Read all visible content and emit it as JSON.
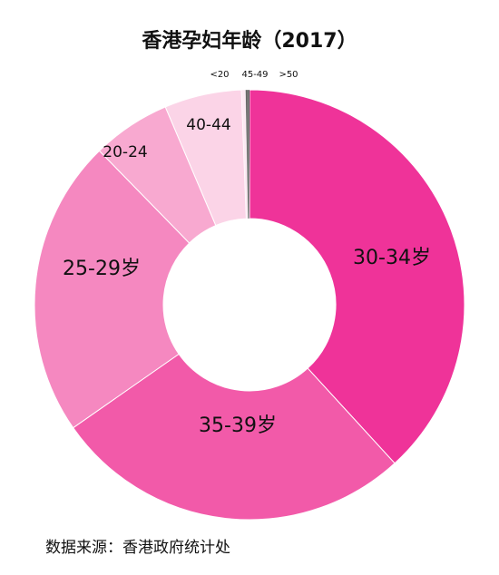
{
  "chart_data": {
    "type": "pie",
    "title": "香港孕妇年龄（2017）",
    "categories": [
      "30-34岁",
      "35-39岁",
      "25-29岁",
      "20-24",
      "40-44",
      "<20",
      "45-49",
      ">50"
    ],
    "values": [
      38.2,
      27.1,
      22.4,
      5.9,
      5.8,
      0.3,
      0.2,
      0.1
    ],
    "colors": [
      "#ef3399",
      "#f25aa9",
      "#f588c0",
      "#f8a9d0",
      "#fbd4e7",
      "#fde9f3",
      "#6a6a6a",
      "#222222"
    ],
    "source": "数据来源：香港政府统计处"
  }
}
